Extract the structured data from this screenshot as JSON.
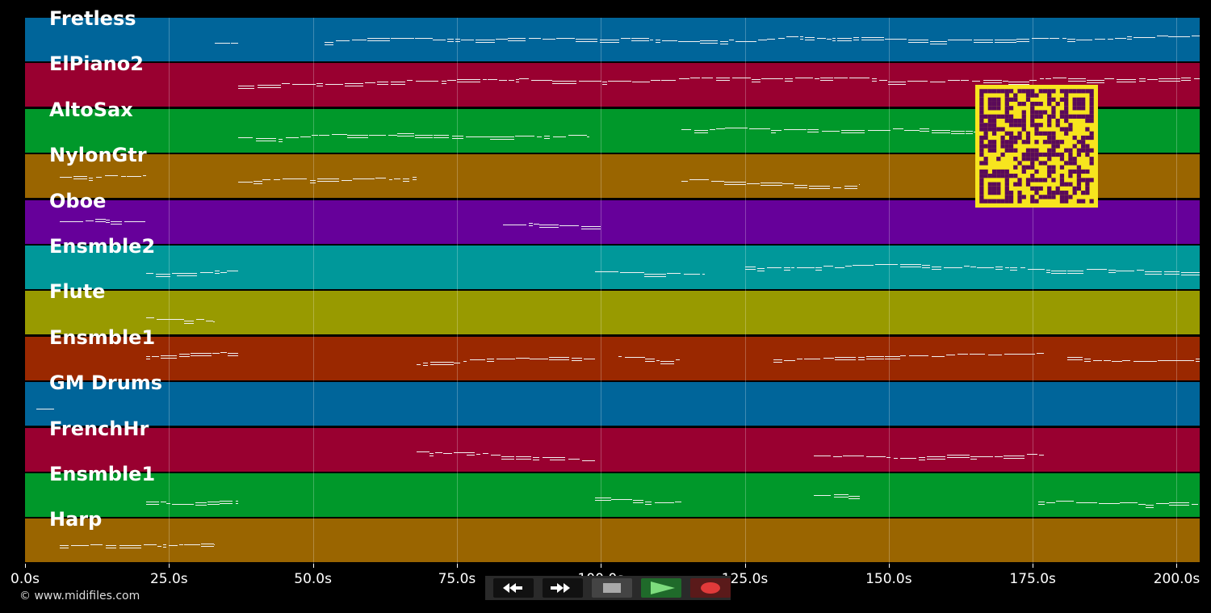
{
  "tracks": [
    {
      "name": "Fretless",
      "color": "#00659a"
    },
    {
      "name": "ElPiano2",
      "color": "#990030"
    },
    {
      "name": "AltoSax",
      "color": "#00982a"
    },
    {
      "name": "NylonGtr",
      "color": "#9a6500"
    },
    {
      "name": "Oboe",
      "color": "#66009a"
    },
    {
      "name": "Ensmble2",
      "color": "#00989a"
    },
    {
      "name": "Flute",
      "color": "#989a00"
    },
    {
      "name": "Ensmble1",
      "color": "#9a2800"
    },
    {
      "name": "GM Drums",
      "color": "#00659a"
    },
    {
      "name": "FrenchHr",
      "color": "#990030"
    },
    {
      "name": "Ensmble1",
      "color": "#00982a"
    },
    {
      "name": "Harp",
      "color": "#9a6500"
    }
  ],
  "time_axis": {
    "ticks": [
      "0.0s",
      "25.0s",
      "50.0s",
      "75.0s",
      "100.0s",
      "125.0s",
      "150.0s",
      "175.0s",
      "200.0s"
    ],
    "tick_values": [
      0,
      25,
      50,
      75,
      100,
      125,
      150,
      175,
      200
    ],
    "max_seconds": 204
  },
  "copyright": "© www.midifiles.com",
  "transport": {
    "buttons": [
      {
        "name": "rewind-button",
        "icon": "rewind-icon",
        "color": "#111111"
      },
      {
        "name": "fast-forward-button",
        "icon": "fast-forward-icon",
        "color": "#111111"
      },
      {
        "name": "stop-button",
        "icon": "stop-icon",
        "color": "#444444"
      },
      {
        "name": "play-button",
        "icon": "play-icon",
        "color": "#1f6a2a"
      },
      {
        "name": "record-button",
        "icon": "record-icon",
        "color": "#5a1a1a"
      }
    ]
  },
  "qr_colors": {
    "dark": "#5a0a5a",
    "light": "#f7e51e"
  },
  "note_segments": [
    {
      "track": 0,
      "ranges": [
        [
          33,
          37
        ],
        [
          52,
          204
        ]
      ]
    },
    {
      "track": 1,
      "ranges": [
        [
          37,
          204
        ]
      ]
    },
    {
      "track": 2,
      "ranges": [
        [
          37,
          98
        ],
        [
          114,
          170
        ]
      ]
    },
    {
      "track": 3,
      "ranges": [
        [
          6,
          21
        ],
        [
          37,
          68
        ],
        [
          114,
          145
        ]
      ]
    },
    {
      "track": 4,
      "ranges": [
        [
          6,
          21
        ],
        [
          83,
          100
        ]
      ]
    },
    {
      "track": 5,
      "ranges": [
        [
          21,
          37
        ],
        [
          99,
          118
        ],
        [
          125,
          204
        ]
      ]
    },
    {
      "track": 6,
      "ranges": [
        [
          21,
          33
        ]
      ]
    },
    {
      "track": 7,
      "ranges": [
        [
          21,
          37
        ],
        [
          68,
          99
        ],
        [
          103,
          114
        ],
        [
          130,
          177
        ],
        [
          181,
          204
        ]
      ]
    },
    {
      "track": 8,
      "ranges": [
        [
          2,
          5
        ]
      ]
    },
    {
      "track": 9,
      "ranges": [
        [
          68,
          99
        ],
        [
          137,
          177
        ]
      ]
    },
    {
      "track": 10,
      "ranges": [
        [
          21,
          37
        ],
        [
          99,
          114
        ],
        [
          137,
          145
        ],
        [
          176,
          204
        ]
      ]
    },
    {
      "track": 11,
      "ranges": [
        [
          6,
          33
        ]
      ]
    }
  ]
}
